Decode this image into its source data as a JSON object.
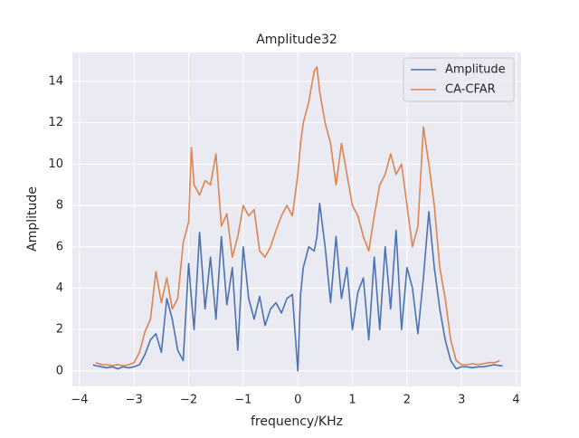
{
  "chart_data": {
    "type": "line",
    "title": "Amplitude32",
    "xlabel": "frequency/KHz",
    "ylabel": "Amplitude",
    "x": [
      -3.75,
      -3.7,
      -3.6,
      -3.5,
      -3.4,
      -3.3,
      -3.2,
      -3.1,
      -3.0,
      -2.9,
      -2.8,
      -2.7,
      -2.6,
      -2.5,
      -2.4,
      -2.3,
      -2.2,
      -2.1,
      -2.0,
      -1.95,
      -1.9,
      -1.8,
      -1.7,
      -1.6,
      -1.5,
      -1.4,
      -1.3,
      -1.2,
      -1.1,
      -1.0,
      -0.9,
      -0.8,
      -0.7,
      -0.6,
      -0.5,
      -0.4,
      -0.3,
      -0.2,
      -0.1,
      0.0,
      0.05,
      0.1,
      0.2,
      0.3,
      0.35,
      0.4,
      0.5,
      0.6,
      0.7,
      0.8,
      0.9,
      1.0,
      1.1,
      1.2,
      1.3,
      1.4,
      1.5,
      1.6,
      1.7,
      1.8,
      1.9,
      2.0,
      2.1,
      2.2,
      2.3,
      2.4,
      2.5,
      2.6,
      2.7,
      2.8,
      2.9,
      3.0,
      3.1,
      3.2,
      3.3,
      3.4,
      3.5,
      3.6,
      3.7,
      3.75
    ],
    "series": [
      {
        "name": "Amplitude",
        "color": "#4c72b0",
        "values": [
          0.3,
          0.25,
          0.2,
          0.15,
          0.2,
          0.1,
          0.2,
          0.15,
          0.2,
          0.3,
          0.8,
          1.5,
          1.8,
          0.9,
          3.5,
          2.5,
          1.0,
          0.5,
          5.2,
          3.5,
          2.0,
          6.7,
          3.0,
          5.5,
          2.5,
          6.5,
          3.2,
          5.0,
          1.0,
          6.0,
          3.5,
          2.5,
          3.6,
          2.2,
          3.0,
          3.3,
          2.8,
          3.5,
          3.7,
          0.0,
          3.7,
          5.0,
          6.0,
          5.8,
          6.5,
          8.1,
          6.0,
          3.3,
          6.5,
          3.5,
          5.0,
          2.0,
          3.8,
          4.5,
          1.5,
          5.5,
          2.0,
          6.0,
          3.0,
          6.8,
          2.0,
          5.0,
          4.0,
          1.8,
          4.5,
          7.7,
          5.0,
          3.0,
          1.5,
          0.5,
          0.1,
          0.2,
          0.2,
          0.15,
          0.2,
          0.2,
          0.25,
          0.3,
          0.25,
          0.25
        ]
      },
      {
        "name": "CA-CFAR",
        "color": "#dd8452",
        "values": [
          null,
          0.4,
          0.3,
          0.3,
          0.25,
          0.3,
          0.25,
          0.3,
          0.4,
          0.9,
          1.9,
          2.5,
          4.8,
          3.3,
          4.5,
          3.0,
          3.5,
          6.2,
          7.2,
          10.8,
          9.0,
          8.5,
          9.2,
          9.0,
          10.5,
          7.0,
          7.6,
          5.5,
          6.5,
          8.0,
          7.5,
          7.8,
          5.8,
          5.5,
          6.0,
          6.8,
          7.5,
          8.0,
          7.5,
          9.5,
          11.0,
          12.0,
          13.0,
          14.5,
          14.7,
          13.5,
          12.0,
          11.0,
          9.0,
          11.0,
          9.5,
          8.0,
          7.5,
          6.5,
          5.8,
          7.5,
          9.0,
          9.5,
          10.5,
          9.5,
          10.0,
          8.0,
          6.0,
          7.0,
          11.8,
          10.0,
          8.0,
          5.0,
          3.5,
          1.5,
          0.5,
          0.3,
          0.3,
          0.35,
          0.3,
          0.35,
          0.4,
          0.4,
          0.5,
          null
        ]
      }
    ],
    "xlim": [
      -4.13,
      4.09
    ],
    "ylim": [
      -0.75,
      15.4
    ],
    "xticks": [
      {
        "value": -4,
        "label": "−4"
      },
      {
        "value": -3,
        "label": "−3"
      },
      {
        "value": -2,
        "label": "−2"
      },
      {
        "value": -1,
        "label": "−1"
      },
      0,
      1,
      2,
      3,
      4
    ],
    "yticks": [
      0,
      2,
      4,
      6,
      8,
      10,
      12,
      14
    ],
    "grid": true,
    "legend": "upper right"
  }
}
